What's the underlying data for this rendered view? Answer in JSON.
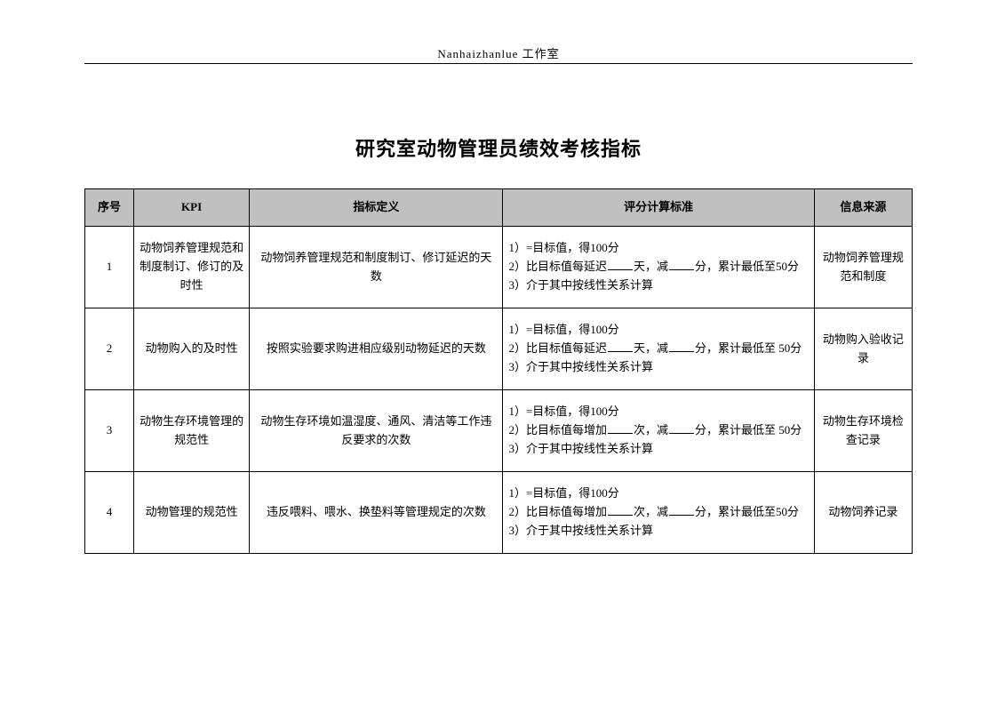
{
  "header": "Nanhaizhanlue 工作室",
  "title": "研究室动物管理员绩效考核指标",
  "columns": {
    "idx": "序号",
    "kpi": "KPI",
    "def": "指标定义",
    "score": "评分计算标准",
    "src": "信息来源"
  },
  "score_common": {
    "l1": "1）=目标值，得100分",
    "l2a_delay": "2）比目标值每延迟",
    "l2a_increase": "2）比目标值每增加",
    "l2_unit_day": "天，减",
    "l2_unit_times": "次，减",
    "l2_tail_50": "分，累计最低至50分",
    "l2_tail_50sp": "分，累计最低至 50分",
    "l3": "3）介于其中按线性关系计算"
  },
  "rows": [
    {
      "idx": "1",
      "kpi": "动物饲养管理规范和制度制订、修订的及时性",
      "def": "动物饲养管理规范和制度制订、修订延迟的天数",
      "src": "动物饲养管理规范和制度",
      "mode": "delay_day",
      "tail": "l2_tail_50"
    },
    {
      "idx": "2",
      "kpi": "动物购入的及时性",
      "def": "按照实验要求购进相应级别动物延迟的天数",
      "src": "动物购入验收记录",
      "mode": "delay_day",
      "tail": "l2_tail_50sp"
    },
    {
      "idx": "3",
      "kpi": "动物生存环境管理的规范性",
      "def": "动物生存环境如温湿度、通风、清洁等工作违反要求的次数",
      "src": "动物生存环境检查记录",
      "mode": "increase_times",
      "tail": "l2_tail_50sp"
    },
    {
      "idx": "4",
      "kpi": "动物管理的规范性",
      "def": "违反喂料、喂水、换垫料等管理规定的次数",
      "src": "动物饲养记录",
      "mode": "increase_times",
      "tail": "l2_tail_50"
    }
  ]
}
